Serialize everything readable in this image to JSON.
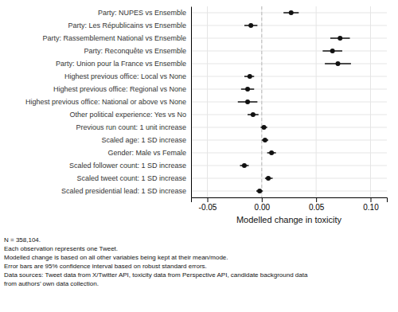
{
  "chart_data": {
    "type": "dot",
    "orientation": "horizontal",
    "categories": [
      "Party: NUPES vs Ensemble",
      "Party: Les Républicains vs Ensemble",
      "Party: Rassemblement National vs Ensemble",
      "Party: Reconquête vs Ensemble",
      "Party: Union pour la France vs Ensemble",
      "Highest previous office: Local vs None",
      "Highest previous office: Regional vs None",
      "Highest previous office: National or above vs None",
      "Other political experience: Yes vs No",
      "Previous run count: 1 unit increase",
      "Scaled age: 1 SD increase",
      "Gender: Male vs Female",
      "Scaled follower count: 1 SD increase",
      "Scaled tweet count: 1 SD increase",
      "Scaled presidential lead: 1 SD increase"
    ],
    "values": [
      0.027,
      -0.01,
      0.072,
      0.065,
      0.07,
      -0.011,
      -0.013,
      -0.013,
      -0.008,
      0.002,
      0.003,
      0.009,
      -0.016,
      0.006,
      -0.002
    ],
    "ci_lower": [
      0.02,
      -0.016,
      0.063,
      0.056,
      0.058,
      -0.016,
      -0.019,
      -0.022,
      -0.013,
      -0.001,
      0.0,
      0.005,
      -0.02,
      0.003,
      -0.005
    ],
    "ci_upper": [
      0.034,
      -0.004,
      0.081,
      0.074,
      0.082,
      -0.007,
      -0.007,
      -0.004,
      -0.003,
      0.005,
      0.006,
      0.013,
      -0.012,
      0.01,
      0.001
    ],
    "color": "#111111",
    "xlabel": "Modelled change in toxicity",
    "xlim": [
      -0.065,
      0.115
    ],
    "xticks": [
      -0.05,
      {
        "value": 0,
        "label": "0.00"
      },
      0.05,
      {
        "value": 0.1,
        "label": "0.10"
      }
    ],
    "vline": 0,
    "grid": true,
    "caption": [
      "N = 358,104.",
      "Each observation represents one Tweet.",
      "Modelled change is based on all other variables being kept at their mean/mode.",
      "Error bars are 95% confidence interval based on robust standard errors.",
      "Data sources: Tweet data from X/Twitter API, toxicity data from Perspective API, candidate background data",
      "from authors’ own data collection."
    ]
  }
}
